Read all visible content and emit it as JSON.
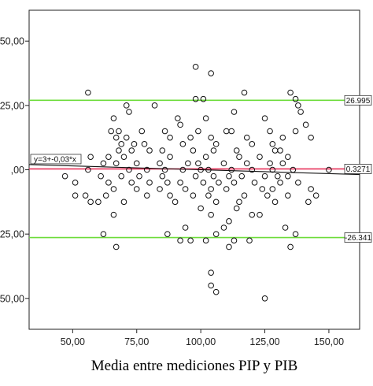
{
  "chart_data": {
    "type": "scatter",
    "title": "",
    "xlabel": "Media entre mediciones PIP y PIB",
    "ylabel": "",
    "xlim": [
      33,
      162
    ],
    "ylim": [
      -62,
      62
    ],
    "x_ticks": [
      50,
      75,
      100,
      125,
      150
    ],
    "x_tick_labels": [
      "50,00",
      "75,00",
      "100,00",
      "125,00",
      "150,00"
    ],
    "y_ticks": [
      50,
      25,
      0,
      -25,
      -50
    ],
    "y_tick_labels": [
      "50,00",
      "25,00",
      ",00",
      "-25,00",
      "-50,00"
    ],
    "grid": false,
    "reference_lines": [
      {
        "label": "26.995",
        "y": 26.995,
        "color": "#6ddc3a"
      },
      {
        "label": "0.3271",
        "y": 0.3271,
        "color": "#e8325a"
      },
      {
        "label": "-26.341",
        "y": -26.341,
        "color": "#6ddc3a"
      }
    ],
    "fit_line": {
      "equation": "y=3+-0,03*x",
      "intercept": 3,
      "slope": -0.03,
      "color": "#111111"
    },
    "points": [
      [
        98,
        40
      ],
      [
        104,
        37.5
      ],
      [
        56,
        30
      ],
      [
        117,
        30
      ],
      [
        135,
        30
      ],
      [
        137,
        27.5
      ],
      [
        98,
        27.5
      ],
      [
        101,
        27.5
      ],
      [
        138,
        25
      ],
      [
        139,
        22.5
      ],
      [
        71,
        25
      ],
      [
        82,
        25
      ],
      [
        72,
        22.5
      ],
      [
        66,
        20
      ],
      [
        91,
        20
      ],
      [
        113,
        22.5
      ],
      [
        125,
        20
      ],
      [
        92,
        17.5
      ],
      [
        102,
        20
      ],
      [
        141,
        17.5
      ],
      [
        65,
        15
      ],
      [
        68,
        15
      ],
      [
        77,
        15
      ],
      [
        86,
        15
      ],
      [
        99,
        15
      ],
      [
        110,
        15
      ],
      [
        112,
        15
      ],
      [
        127,
        15
      ],
      [
        137,
        15
      ],
      [
        67,
        12.5
      ],
      [
        71,
        12.5
      ],
      [
        88,
        12.5
      ],
      [
        96,
        12.5
      ],
      [
        104,
        12.5
      ],
      [
        118,
        12.5
      ],
      [
        132,
        12.5
      ],
      [
        143,
        12.5
      ],
      [
        69,
        10
      ],
      [
        74,
        10
      ],
      [
        78,
        10
      ],
      [
        93,
        10
      ],
      [
        106,
        10
      ],
      [
        120,
        10
      ],
      [
        128,
        10
      ],
      [
        68,
        7.5
      ],
      [
        73,
        7.5
      ],
      [
        80,
        7.5
      ],
      [
        85,
        7.5
      ],
      [
        97,
        7.5
      ],
      [
        105,
        7.5
      ],
      [
        114,
        7.5
      ],
      [
        129,
        7.5
      ],
      [
        131,
        7.5
      ],
      [
        57,
        5
      ],
      [
        64,
        5
      ],
      [
        70,
        5
      ],
      [
        88,
        5
      ],
      [
        102,
        5
      ],
      [
        115,
        5
      ],
      [
        123,
        5
      ],
      [
        134,
        5
      ],
      [
        62,
        2.5
      ],
      [
        67,
        2.5
      ],
      [
        75,
        2.5
      ],
      [
        84,
        2.5
      ],
      [
        95,
        2.5
      ],
      [
        99,
        2.5
      ],
      [
        109,
        2.5
      ],
      [
        118,
        2.5
      ],
      [
        127,
        2.5
      ],
      [
        132,
        2.5
      ],
      [
        56,
        0
      ],
      [
        72,
        0
      ],
      [
        79,
        0
      ],
      [
        86,
        0
      ],
      [
        93,
        0
      ],
      [
        100,
        0
      ],
      [
        103,
        0
      ],
      [
        112,
        0
      ],
      [
        120,
        0
      ],
      [
        128,
        0
      ],
      [
        136,
        0
      ],
      [
        150,
        0
      ],
      [
        47,
        -2.5
      ],
      [
        61,
        -2.5
      ],
      [
        69,
        -2.5
      ],
      [
        76,
        -2.5
      ],
      [
        85,
        -2.5
      ],
      [
        98,
        -2.5
      ],
      [
        105,
        -2.5
      ],
      [
        111,
        -2.5
      ],
      [
        116,
        -2.5
      ],
      [
        125,
        -2.5
      ],
      [
        130,
        -2.5
      ],
      [
        134,
        -2.5
      ],
      [
        51,
        -5
      ],
      [
        64,
        -5
      ],
      [
        73,
        -5
      ],
      [
        80,
        -5
      ],
      [
        87,
        -5
      ],
      [
        92,
        -5
      ],
      [
        101,
        -5
      ],
      [
        107,
        -5
      ],
      [
        113,
        -5
      ],
      [
        121,
        -5
      ],
      [
        131,
        -5
      ],
      [
        138,
        -5
      ],
      [
        66,
        -7.5
      ],
      [
        75,
        -7.5
      ],
      [
        84,
        -7.5
      ],
      [
        94,
        -7.5
      ],
      [
        104,
        -7.5
      ],
      [
        110,
        -7.5
      ],
      [
        124,
        -7.5
      ],
      [
        128,
        -7.5
      ],
      [
        143,
        -7.5
      ],
      [
        51,
        -10
      ],
      [
        55,
        -10
      ],
      [
        63,
        -10
      ],
      [
        79,
        -10
      ],
      [
        88,
        -10
      ],
      [
        97,
        -10
      ],
      [
        103,
        -10
      ],
      [
        117,
        -10
      ],
      [
        126,
        -10
      ],
      [
        134,
        -10
      ],
      [
        145,
        -10
      ],
      [
        57,
        -12.5
      ],
      [
        60,
        -12.5
      ],
      [
        70,
        -12.5
      ],
      [
        90,
        -12.5
      ],
      [
        106,
        -12.5
      ],
      [
        115,
        -12.5
      ],
      [
        129,
        -12.5
      ],
      [
        142,
        -12.5
      ],
      [
        100,
        -15
      ],
      [
        114,
        -15
      ],
      [
        66,
        -17.5
      ],
      [
        104,
        -17.5
      ],
      [
        120,
        -17.5
      ],
      [
        123,
        -17.5
      ],
      [
        111,
        -20
      ],
      [
        94,
        -22.5
      ],
      [
        109,
        -22.5
      ],
      [
        133,
        -22.5
      ],
      [
        62,
        -25
      ],
      [
        87,
        -25
      ],
      [
        106,
        -25
      ],
      [
        137,
        -25
      ],
      [
        92,
        -27.5
      ],
      [
        96,
        -27.5
      ],
      [
        102,
        -27.5
      ],
      [
        113,
        -27.5
      ],
      [
        119,
        -27.5
      ],
      [
        67,
        -30
      ],
      [
        111,
        -30
      ],
      [
        135,
        -30
      ],
      [
        104,
        -40
      ],
      [
        104,
        -45
      ],
      [
        106,
        -47.5
      ],
      [
        125,
        -50
      ]
    ]
  }
}
